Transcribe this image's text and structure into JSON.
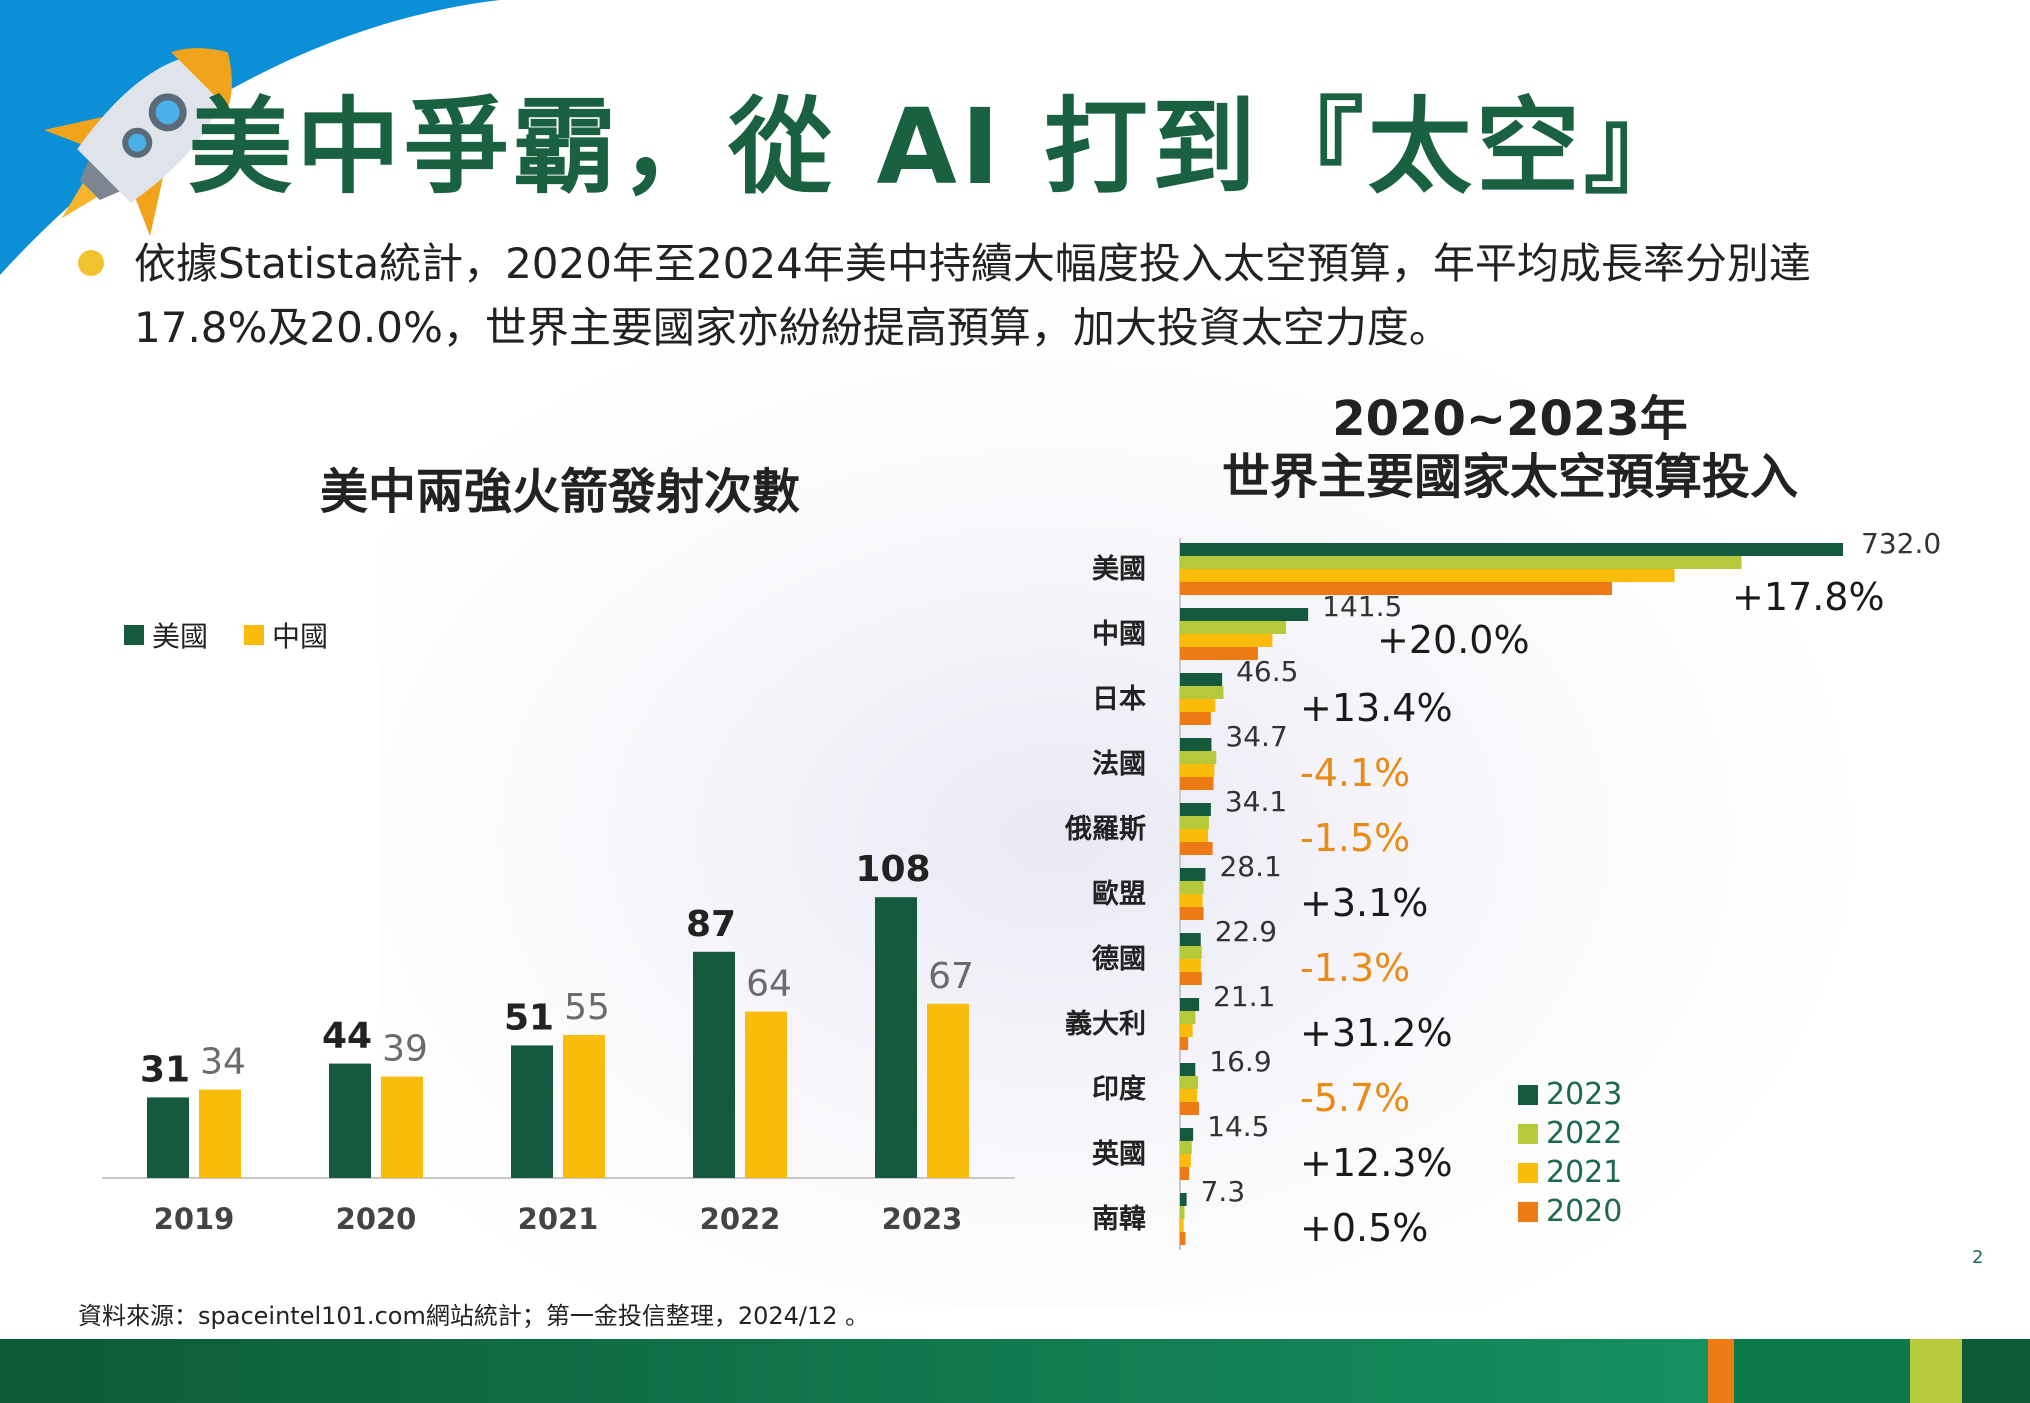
{
  "title": "美中爭霸，從 AI 打到『太空』",
  "bullet": {
    "line1": "依據Statista統計，2020年至2024年美中持續大幅度投入太空預算，年平均成長率分別達",
    "line2": "17.8%及20.0%，世界主要國家亦紛紛提高預算，加大投資太空力度。"
  },
  "colors": {
    "title_green": "#1a6142",
    "us_green": "#155a3e",
    "cn_yellow": "#f9bc0a",
    "c2023": "#155a3e",
    "c2022": "#b5c93a",
    "c2021": "#f9bc0a",
    "c2020": "#ee7a16",
    "negative_orange": "#e98b18"
  },
  "source": "資料來源：spaceintel101.com網站統計；第一金投信整理，2024/12 。",
  "page_number": "2",
  "chart_data": [
    {
      "type": "bar",
      "title": "美中兩強火箭發射次數",
      "categories": [
        "2019",
        "2020",
        "2021",
        "2022",
        "2023"
      ],
      "series": [
        {
          "name": "美國",
          "values": [
            31,
            44,
            51,
            87,
            108
          ],
          "label_color": "#222222"
        },
        {
          "name": "中國",
          "values": [
            34,
            39,
            55,
            64,
            67
          ],
          "label_color": "#6b6b6b"
        }
      ],
      "ylim": [
        0,
        120
      ],
      "legend": "top-left"
    },
    {
      "type": "bar",
      "orientation": "horizontal",
      "title_line1": "2020~2023年",
      "title_line2": "世界主要國家太空預算投入",
      "categories": [
        "美國",
        "中國",
        "日本",
        "法國",
        "俄羅斯",
        "歐盟",
        "德國",
        "義大利",
        "印度",
        "英國",
        "南韓"
      ],
      "series": [
        {
          "name": "2023",
          "values": [
            732.0,
            141.5,
            46.5,
            34.7,
            34.1,
            28.1,
            22.9,
            21.1,
            16.9,
            14.5,
            7.3
          ]
        },
        {
          "name": "2022",
          "values": [
            620,
            117,
            48,
            40,
            32,
            26,
            24,
            17,
            20,
            13,
            5
          ]
        },
        {
          "name": "2021",
          "values": [
            546,
            102,
            39,
            38,
            31,
            25,
            23,
            14,
            19,
            12,
            4
          ]
        },
        {
          "name": "2020",
          "values": [
            477,
            86,
            34,
            37,
            36,
            26,
            24,
            9,
            21,
            10,
            6
          ]
        }
      ],
      "value_labels": [
        "732.0",
        "141.5",
        "46.5",
        "34.7",
        "34.1",
        "28.1",
        "22.9",
        "21.1",
        "16.9",
        "14.5",
        "7.3"
      ],
      "growth_labels": [
        "+17.8%",
        "+20.0%",
        "+13.4%",
        "-4.1%",
        "-1.5%",
        "+3.1%",
        "-1.3%",
        "+31.2%",
        "-5.7%",
        "+12.3%",
        "+0.5%"
      ],
      "xlim": [
        0,
        732
      ],
      "legend": "bottom-right"
    }
  ]
}
